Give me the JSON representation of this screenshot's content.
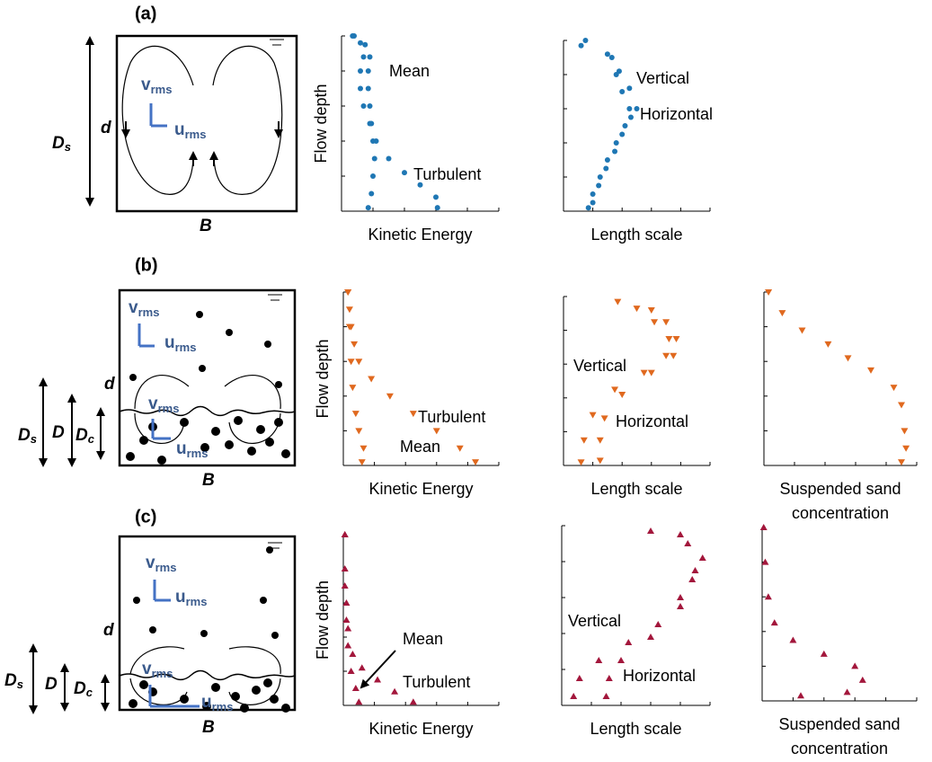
{
  "schematics": [
    {
      "label": "(a)",
      "Ds": [
        "D",
        "s"
      ],
      "d": "d",
      "v": [
        "v",
        "rms"
      ],
      "u": [
        "u",
        "rms"
      ],
      "B": "B"
    },
    {
      "label": "(b)",
      "Ds": [
        "D",
        "s"
      ],
      "D": "D",
      "Dc": [
        "D",
        "c"
      ],
      "d": "d",
      "v": [
        "v",
        "rms"
      ],
      "u": [
        "u",
        "rms"
      ],
      "v2": [
        "v",
        "rms"
      ],
      "u2": [
        "u",
        "rms"
      ],
      "B": "B"
    },
    {
      "label": "(c)",
      "Ds": [
        "D",
        "s"
      ],
      "D": "D",
      "Dc": [
        "D",
        "c"
      ],
      "d": "d",
      "v": [
        "v",
        "rms"
      ],
      "u": [
        "u",
        "rms"
      ],
      "v2": [
        "v",
        "rms"
      ],
      "u2": [
        "u",
        "rms"
      ],
      "B": "B"
    }
  ],
  "chart_data": [
    {
      "type": "scatter",
      "marker": "circle",
      "color": "#1f77b4",
      "ylabel": "Flow depth",
      "xlabel": [
        "Kinetic Energy"
      ],
      "xlim": [
        0,
        1
      ],
      "ylim": [
        0,
        1
      ],
      "xticks": [
        0,
        0.2,
        0.4,
        0.6,
        0.8,
        1
      ],
      "yticks": [
        0,
        0.2,
        0.4,
        0.6,
        0.8,
        1
      ],
      "series": [
        {
          "name": "Mean",
          "x": [
            0.17,
            0.19,
            0.2,
            0.21,
            0.2,
            0.19,
            0.18,
            0.17,
            0.17,
            0.18,
            0.15,
            0.07
          ],
          "values": [
            0.02,
            0.1,
            0.2,
            0.3,
            0.4,
            0.5,
            0.6,
            0.7,
            0.8,
            0.88,
            0.95,
            1.0
          ]
        },
        {
          "name": "Turbulent",
          "x": [
            0.61,
            0.6,
            0.5,
            0.4,
            0.3,
            0.22,
            0.18,
            0.14,
            0.12,
            0.12,
            0.14,
            0.12,
            0.08
          ],
          "values": [
            0.02,
            0.08,
            0.15,
            0.22,
            0.3,
            0.4,
            0.5,
            0.6,
            0.7,
            0.8,
            0.88,
            0.96,
            1.0
          ]
        }
      ]
    },
    {
      "type": "scatter",
      "marker": "circle",
      "color": "#1f77b4",
      "xlabel": [
        "Length scale"
      ],
      "xlim": [
        0,
        1
      ],
      "ylim": [
        0,
        1
      ],
      "xticks": [
        0,
        0.2,
        0.4,
        0.6,
        0.8,
        1
      ],
      "yticks": [
        0,
        0.2,
        0.4,
        0.6,
        0.8,
        1
      ],
      "series": [
        {
          "name": "Vertical",
          "x": [
            0.17,
            0.2,
            0.25,
            0.3,
            0.36,
            0.42,
            0.45,
            0.4,
            0.36,
            0.33,
            0.15
          ],
          "values": [
            0.02,
            0.1,
            0.2,
            0.3,
            0.4,
            0.5,
            0.6,
            0.7,
            0.8,
            0.9,
            1.0
          ]
        },
        {
          "name": "Horizontal",
          "x": [
            0.2,
            0.24,
            0.29,
            0.35,
            0.4,
            0.46,
            0.5,
            0.45,
            0.38,
            0.3,
            0.12
          ],
          "values": [
            0.05,
            0.15,
            0.25,
            0.35,
            0.45,
            0.55,
            0.6,
            0.72,
            0.82,
            0.92,
            0.97
          ]
        }
      ]
    },
    {
      "type": "scatter",
      "marker": "down",
      "color": "#e0691f",
      "ylabel": "Flow depth",
      "xlabel": [
        "Kinetic Energy"
      ],
      "xlim": [
        0,
        1
      ],
      "ylim": [
        0,
        1
      ],
      "xticks": [
        0,
        0.2,
        0.4,
        0.6,
        0.8,
        1
      ],
      "yticks": [
        0,
        0.2,
        0.4,
        0.6,
        0.8,
        1
      ],
      "series": [
        {
          "name": "Mean",
          "x": [
            0.12,
            0.13,
            0.1,
            0.08,
            0.06,
            0.05,
            0.04,
            0.03
          ],
          "values": [
            0.02,
            0.1,
            0.2,
            0.3,
            0.45,
            0.6,
            0.8,
            1.0
          ]
        },
        {
          "name": "Turbulent",
          "x": [
            0.85,
            0.75,
            0.6,
            0.45,
            0.3,
            0.18,
            0.1,
            0.07,
            0.05,
            0.04,
            0.03
          ],
          "values": [
            0.02,
            0.1,
            0.2,
            0.3,
            0.4,
            0.5,
            0.6,
            0.7,
            0.8,
            0.9,
            1.0
          ]
        }
      ]
    },
    {
      "type": "scatter",
      "marker": "down",
      "color": "#e0691f",
      "xlabel": [
        "Length scale"
      ],
      "xlim": [
        0,
        1
      ],
      "ylim": [
        0,
        1
      ],
      "xticks": [
        0,
        0.2,
        0.4,
        0.6,
        0.8,
        1
      ],
      "yticks": [
        0,
        0.2,
        0.4,
        0.6,
        0.8,
        1
      ],
      "series": [
        {
          "name": "Vertical",
          "x": [
            0.12,
            0.14,
            0.2,
            0.35,
            0.55,
            0.7,
            0.72,
            0.62,
            0.5,
            0.37
          ],
          "values": [
            0.02,
            0.15,
            0.3,
            0.45,
            0.55,
            0.65,
            0.75,
            0.85,
            0.93,
            0.97
          ]
        },
        {
          "name": "Horizontal",
          "x": [
            0.25,
            0.25,
            0.28,
            0.4,
            0.6,
            0.75,
            0.77,
            0.7,
            0.6
          ],
          "values": [
            0.03,
            0.15,
            0.28,
            0.42,
            0.55,
            0.65,
            0.75,
            0.85,
            0.92
          ]
        }
      ]
    },
    {
      "type": "scatter",
      "marker": "down",
      "color": "#e0691f",
      "xlabel": [
        "Suspended sand",
        "concentration"
      ],
      "xlim": [
        0,
        1
      ],
      "ylim": [
        0,
        1
      ],
      "xticks": [
        0,
        0.2,
        0.4,
        0.6,
        0.8,
        1
      ],
      "yticks": [
        0,
        0.2,
        0.4,
        0.6,
        0.8,
        1
      ],
      "series": [
        {
          "x": [
            0.9,
            0.93,
            0.92,
            0.9,
            0.85,
            0.7,
            0.55,
            0.42,
            0.25,
            0.12,
            0.03
          ],
          "values": [
            0.02,
            0.1,
            0.2,
            0.35,
            0.45,
            0.55,
            0.62,
            0.7,
            0.78,
            0.88,
            1.0
          ]
        }
      ]
    },
    {
      "type": "scatter",
      "marker": "up",
      "color": "#a3173c",
      "ylabel": "Flow depth",
      "xlabel": [
        "Kinetic Energy"
      ],
      "xlim": [
        0,
        1
      ],
      "ylim": [
        0,
        1
      ],
      "xticks": [
        0,
        0.2,
        0.4,
        0.6,
        0.8,
        1
      ],
      "yticks": [
        0,
        0.2,
        0.4,
        0.6,
        0.8,
        1
      ],
      "series": [
        {
          "name": "Mean",
          "x": [
            0.1,
            0.08,
            0.05,
            0.03,
            0.02,
            0.01,
            0.01
          ],
          "values": [
            0.02,
            0.1,
            0.2,
            0.35,
            0.5,
            0.7,
            1.0
          ]
        },
        {
          "name": "Turbulent",
          "x": [
            0.45,
            0.33,
            0.22,
            0.12,
            0.06,
            0.03,
            0.02,
            0.01,
            0.01
          ],
          "values": [
            0.02,
            0.08,
            0.15,
            0.22,
            0.3,
            0.45,
            0.6,
            0.8,
            1.0
          ]
        }
      ]
    },
    {
      "type": "scatter",
      "marker": "up",
      "color": "#a3173c",
      "xlabel": [
        "Length scale"
      ],
      "xlim": [
        0,
        1
      ],
      "ylim": [
        0,
        1
      ],
      "xticks": [
        0,
        0.2,
        0.4,
        0.6,
        0.8,
        1
      ],
      "yticks": [
        0,
        0.2,
        0.4,
        0.6,
        0.8,
        1
      ],
      "series": [
        {
          "name": "Vertical",
          "x": [
            0.08,
            0.12,
            0.25,
            0.45,
            0.65,
            0.8,
            0.9,
            0.85,
            0.6
          ],
          "values": [
            0.05,
            0.15,
            0.25,
            0.35,
            0.45,
            0.6,
            0.75,
            0.9,
            0.97
          ]
        },
        {
          "name": "Horizontal",
          "x": [
            0.3,
            0.32,
            0.4,
            0.6,
            0.8,
            0.88,
            0.95,
            0.8
          ],
          "values": [
            0.05,
            0.15,
            0.25,
            0.38,
            0.55,
            0.7,
            0.82,
            0.95
          ]
        }
      ]
    },
    {
      "type": "scatter",
      "marker": "up",
      "color": "#a3173c",
      "xlabel": [
        "Suspended sand",
        "concentration"
      ],
      "xlim": [
        0,
        1
      ],
      "ylim": [
        0,
        1
      ],
      "xticks": [
        0,
        0.2,
        0.4,
        0.6,
        0.8,
        1
      ],
      "yticks": [
        0,
        0.2,
        0.4,
        0.6,
        0.8,
        1
      ],
      "series": [
        {
          "x": [
            0.55,
            0.65,
            0.6,
            0.4,
            0.2,
            0.08,
            0.04,
            0.02,
            0.01,
            0.25
          ],
          "values": [
            0.05,
            0.12,
            0.2,
            0.27,
            0.35,
            0.45,
            0.6,
            0.8,
            1.0,
            0.03
          ]
        }
      ]
    }
  ]
}
